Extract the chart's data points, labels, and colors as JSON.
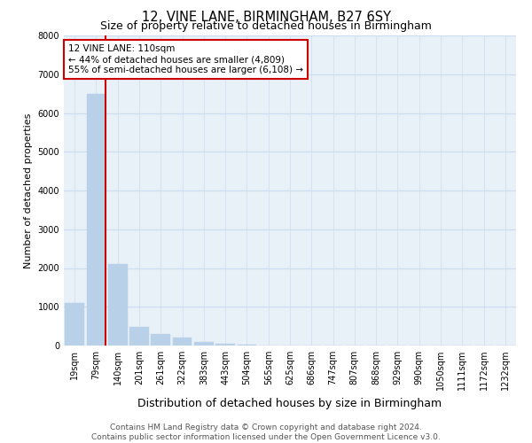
{
  "title": "12, VINE LANE, BIRMINGHAM, B27 6SY",
  "subtitle": "Size of property relative to detached houses in Birmingham",
  "xlabel": "Distribution of detached houses by size in Birmingham",
  "ylabel": "Number of detached properties",
  "footer_line1": "Contains HM Land Registry data © Crown copyright and database right 2024.",
  "footer_line2": "Contains public sector information licensed under the Open Government Licence v3.0.",
  "annotation_line1": "12 VINE LANE: 110sqm",
  "annotation_line2": "← 44% of detached houses are smaller (4,809)",
  "annotation_line3": "55% of semi-detached houses are larger (6,108) →",
  "ylim": [
    0,
    8000
  ],
  "bar_color": "#b8d0e8",
  "red_line_color": "#cc0000",
  "grid_color": "#ccddf0",
  "background_color": "#e8f0f8",
  "categories": [
    "19sqm",
    "79sqm",
    "140sqm",
    "201sqm",
    "261sqm",
    "322sqm",
    "383sqm",
    "443sqm",
    "504sqm",
    "565sqm",
    "625sqm",
    "686sqm",
    "747sqm",
    "807sqm",
    "868sqm",
    "929sqm",
    "990sqm",
    "1050sqm",
    "1111sqm",
    "1172sqm",
    "1232sqm"
  ],
  "values": [
    1100,
    6500,
    2100,
    480,
    300,
    200,
    100,
    50,
    20,
    10,
    5,
    2,
    1,
    1,
    1,
    1,
    1,
    1,
    1,
    1,
    1
  ],
  "property_bar_index": 1,
  "red_line_x": 1.42,
  "figsize": [
    6.0,
    5.0
  ],
  "dpi": 100,
  "title_fontsize": 10.5,
  "subtitle_fontsize": 9,
  "ylabel_fontsize": 8,
  "xlabel_fontsize": 9,
  "tick_fontsize": 7,
  "footer_fontsize": 6.5,
  "annotation_fontsize": 7.5
}
